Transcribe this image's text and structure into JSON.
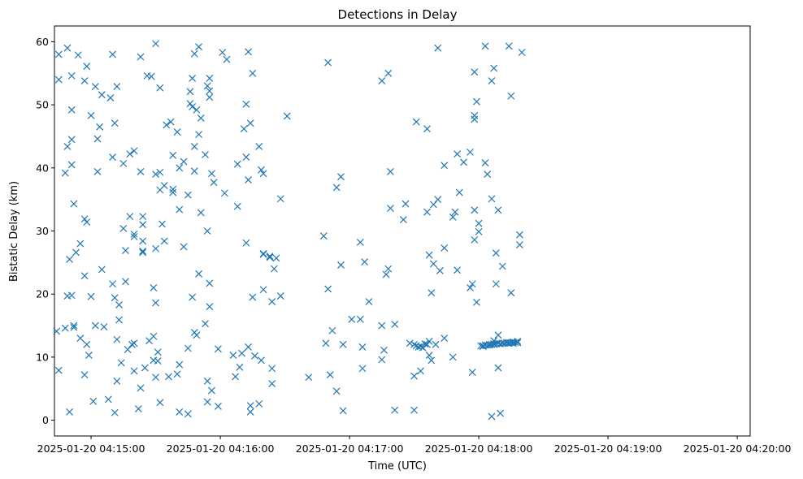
{
  "chart_data": {
    "type": "scatter",
    "title": "Detections in Delay",
    "xlabel": "Time (UTC)",
    "ylabel": "Bistatic Delay (km)",
    "marker": "x",
    "color": "#1f77b4",
    "grid": false,
    "x_tick_labels": [
      "2025-01-20 04:15:00",
      "2025-01-20 04:16:00",
      "2025-01-20 04:17:00",
      "2025-01-20 04:18:00",
      "2025-01-20 04:19:00",
      "2025-01-20 04:20:00"
    ],
    "y_tick_labels": [
      "0",
      "10",
      "20",
      "30",
      "40",
      "50",
      "60"
    ],
    "y_ticks": [
      0,
      10,
      20,
      30,
      40,
      50,
      60
    ],
    "ylim": [
      -2.5,
      62.5
    ],
    "xlim": [
      "2025-01-20 04:14:43",
      "2025-01-20 04:20:06"
    ],
    "points": [
      [
        "04:14:44",
        14.1
      ],
      [
        "04:14:45",
        54.0
      ],
      [
        "04:14:45",
        58.0
      ],
      [
        "04:14:45",
        7.9
      ],
      [
        "04:14:48",
        39.2
      ],
      [
        "04:14:48",
        14.6
      ],
      [
        "04:14:49",
        59.0
      ],
      [
        "04:14:49",
        43.4
      ],
      [
        "04:14:49",
        19.7
      ],
      [
        "04:14:50",
        1.3
      ],
      [
        "04:14:50",
        25.5
      ],
      [
        "04:14:51",
        49.2
      ],
      [
        "04:14:51",
        54.6
      ],
      [
        "04:14:51",
        44.5
      ],
      [
        "04:14:51",
        40.5
      ],
      [
        "04:14:51",
        19.8
      ],
      [
        "04:14:52",
        34.3
      ],
      [
        "04:14:52",
        15.0
      ],
      [
        "04:14:52",
        14.7
      ],
      [
        "04:14:53",
        26.6
      ],
      [
        "04:14:54",
        57.9
      ],
      [
        "04:14:55",
        28.0
      ],
      [
        "04:14:55",
        13.0
      ],
      [
        "04:14:57",
        7.2
      ],
      [
        "04:14:57",
        22.9
      ],
      [
        "04:14:57",
        31.9
      ],
      [
        "04:14:57",
        53.8
      ],
      [
        "04:14:58",
        56.1
      ],
      [
        "04:14:58",
        31.4
      ],
      [
        "04:14:58",
        12.0
      ],
      [
        "04:14:59",
        10.3
      ],
      [
        "04:15:00",
        48.3
      ],
      [
        "04:15:00",
        19.6
      ],
      [
        "04:15:01",
        3.0
      ],
      [
        "04:15:02",
        52.9
      ],
      [
        "04:15:02",
        15.0
      ],
      [
        "04:15:03",
        44.6
      ],
      [
        "04:15:03",
        39.4
      ],
      [
        "04:15:04",
        46.5
      ],
      [
        "04:15:05",
        51.6
      ],
      [
        "04:15:05",
        23.9
      ],
      [
        "04:15:06",
        14.8
      ],
      [
        "04:15:08",
        3.3
      ],
      [
        "04:15:09",
        51.1
      ],
      [
        "04:15:10",
        41.7
      ],
      [
        "04:15:10",
        21.6
      ],
      [
        "04:15:10",
        58.0
      ],
      [
        "04:15:11",
        47.1
      ],
      [
        "04:15:11",
        19.4
      ],
      [
        "04:15:11",
        1.2
      ],
      [
        "04:15:12",
        52.9
      ],
      [
        "04:15:12",
        12.8
      ],
      [
        "04:15:12",
        6.2
      ],
      [
        "04:15:13",
        15.9
      ],
      [
        "04:15:13",
        18.3
      ],
      [
        "04:15:14",
        9.1
      ],
      [
        "04:15:15",
        30.4
      ],
      [
        "04:15:15",
        40.7
      ],
      [
        "04:15:16",
        22.0
      ],
      [
        "04:15:16",
        26.9
      ],
      [
        "04:15:17",
        11.2
      ],
      [
        "04:15:18",
        42.2
      ],
      [
        "04:15:18",
        32.3
      ],
      [
        "04:15:19",
        12.0
      ],
      [
        "04:15:20",
        29.5
      ],
      [
        "04:15:20",
        29.1
      ],
      [
        "04:15:20",
        12.2
      ],
      [
        "04:15:20",
        7.8
      ],
      [
        "04:15:20",
        42.7
      ],
      [
        "04:15:22",
        1.8
      ],
      [
        "04:15:23",
        57.6
      ],
      [
        "04:15:23",
        39.4
      ],
      [
        "04:15:23",
        5.1
      ],
      [
        "04:15:24",
        26.6
      ],
      [
        "04:15:24",
        26.8
      ],
      [
        "04:15:24",
        32.3
      ],
      [
        "04:15:24",
        31.0
      ],
      [
        "04:15:24",
        28.4
      ],
      [
        "04:15:25",
        8.3
      ],
      [
        "04:15:26",
        54.6
      ],
      [
        "04:15:27",
        12.6
      ],
      [
        "04:15:28",
        54.5
      ],
      [
        "04:15:29",
        21.0
      ],
      [
        "04:15:29",
        9.5
      ],
      [
        "04:15:29",
        13.3
      ],
      [
        "04:15:30",
        39.0
      ],
      [
        "04:15:30",
        27.2
      ],
      [
        "04:15:30",
        18.6
      ],
      [
        "04:15:30",
        6.8
      ],
      [
        "04:15:30",
        59.7
      ],
      [
        "04:15:31",
        10.8
      ],
      [
        "04:15:31",
        9.4
      ],
      [
        "04:15:32",
        39.3
      ],
      [
        "04:15:32",
        36.5
      ],
      [
        "04:15:32",
        52.7
      ],
      [
        "04:15:32",
        2.8
      ],
      [
        "04:15:33",
        31.1
      ],
      [
        "04:15:34",
        37.2
      ],
      [
        "04:15:34",
        28.4
      ],
      [
        "04:15:35",
        46.8
      ],
      [
        "04:15:36",
        6.9
      ],
      [
        "04:15:37",
        47.3
      ],
      [
        "04:15:38",
        42.0
      ],
      [
        "04:15:38",
        36.6
      ],
      [
        "04:15:38",
        36.1
      ],
      [
        "04:15:40",
        45.7
      ],
      [
        "04:15:40",
        7.3
      ],
      [
        "04:15:41",
        8.8
      ],
      [
        "04:15:41",
        1.3
      ],
      [
        "04:15:41",
        33.4
      ],
      [
        "04:15:41",
        40.0
      ],
      [
        "04:15:43",
        41.0
      ],
      [
        "04:15:43",
        27.5
      ],
      [
        "04:15:45",
        35.7
      ],
      [
        "04:15:45",
        1.0
      ],
      [
        "04:15:45",
        11.4
      ],
      [
        "04:15:46",
        52.1
      ],
      [
        "04:15:46",
        50.2
      ],
      [
        "04:15:47",
        49.7
      ],
      [
        "04:15:47",
        54.2
      ],
      [
        "04:15:47",
        19.5
      ],
      [
        "04:15:48",
        13.9
      ],
      [
        "04:15:48",
        43.4
      ],
      [
        "04:15:48",
        39.5
      ],
      [
        "04:15:48",
        58.1
      ],
      [
        "04:15:49",
        49.2
      ],
      [
        "04:15:49",
        13.5
      ],
      [
        "04:15:50",
        59.2
      ],
      [
        "04:15:50",
        45.3
      ],
      [
        "04:15:50",
        23.2
      ],
      [
        "04:15:51",
        47.9
      ],
      [
        "04:15:51",
        32.9
      ],
      [
        "04:15:53",
        15.3
      ],
      [
        "04:15:53",
        42.1
      ],
      [
        "04:15:54",
        2.9
      ],
      [
        "04:15:54",
        6.2
      ],
      [
        "04:15:54",
        30.0
      ],
      [
        "04:15:54",
        53.0
      ],
      [
        "04:15:55",
        18.0
      ],
      [
        "04:15:55",
        54.2
      ],
      [
        "04:15:55",
        52.2
      ],
      [
        "04:15:55",
        51.2
      ],
      [
        "04:15:55",
        21.7
      ],
      [
        "04:15:56",
        39.1
      ],
      [
        "04:15:56",
        4.7
      ],
      [
        "04:15:57",
        37.7
      ],
      [
        "04:15:59",
        2.2
      ],
      [
        "04:15:59",
        11.3
      ],
      [
        "04:16:01",
        58.3
      ],
      [
        "04:16:02",
        36.0
      ],
      [
        "04:16:03",
        57.2
      ],
      [
        "04:16:06",
        10.3
      ],
      [
        "04:16:07",
        6.9
      ],
      [
        "04:16:08",
        33.9
      ],
      [
        "04:16:08",
        40.6
      ],
      [
        "04:16:09",
        8.4
      ],
      [
        "04:16:10",
        10.6
      ],
      [
        "04:16:11",
        46.2
      ],
      [
        "04:16:12",
        28.1
      ],
      [
        "04:16:12",
        50.1
      ],
      [
        "04:16:12",
        41.7
      ],
      [
        "04:16:13",
        38.1
      ],
      [
        "04:16:13",
        11.6
      ],
      [
        "04:16:13",
        58.4
      ],
      [
        "04:16:14",
        47.1
      ],
      [
        "04:16:14",
        1.3
      ],
      [
        "04:16:14",
        2.3
      ],
      [
        "04:16:15",
        19.5
      ],
      [
        "04:16:15",
        55.0
      ],
      [
        "04:16:16",
        10.2
      ],
      [
        "04:16:18",
        43.4
      ],
      [
        "04:16:18",
        2.6
      ],
      [
        "04:16:19",
        9.5
      ],
      [
        "04:16:19",
        39.7
      ],
      [
        "04:16:20",
        39.1
      ],
      [
        "04:16:20",
        26.4
      ],
      [
        "04:16:20",
        26.3
      ],
      [
        "04:16:20",
        20.7
      ],
      [
        "04:16:23",
        26.0
      ],
      [
        "04:16:23",
        25.8
      ],
      [
        "04:16:24",
        18.8
      ],
      [
        "04:16:24",
        8.2
      ],
      [
        "04:16:24",
        5.8
      ],
      [
        "04:16:25",
        24.0
      ],
      [
        "04:16:26",
        25.7
      ],
      [
        "04:16:28",
        35.1
      ],
      [
        "04:16:28",
        19.7
      ],
      [
        "04:16:31",
        48.2
      ],
      [
        "04:16:41",
        6.8
      ],
      [
        "04:16:48",
        29.2
      ],
      [
        "04:16:49",
        12.2
      ],
      [
        "04:16:50",
        56.7
      ],
      [
        "04:16:50",
        20.8
      ],
      [
        "04:16:51",
        7.2
      ],
      [
        "04:16:52",
        14.2
      ],
      [
        "04:16:54",
        4.6
      ],
      [
        "04:16:54",
        36.9
      ],
      [
        "04:16:56",
        38.6
      ],
      [
        "04:16:56",
        24.6
      ],
      [
        "04:16:57",
        12.0
      ],
      [
        "04:16:57",
        1.5
      ],
      [
        "04:17:01",
        16.0
      ],
      [
        "04:17:05",
        16.0
      ],
      [
        "04:17:05",
        28.2
      ],
      [
        "04:17:06",
        11.6
      ],
      [
        "04:17:06",
        8.2
      ],
      [
        "04:17:07",
        25.1
      ],
      [
        "04:17:09",
        18.8
      ],
      [
        "04:17:15",
        53.8
      ],
      [
        "04:17:15",
        15.0
      ],
      [
        "04:17:15",
        9.6
      ],
      [
        "04:17:16",
        11.1
      ],
      [
        "04:17:17",
        23.1
      ],
      [
        "04:17:18",
        24.0
      ],
      [
        "04:17:18",
        55.0
      ],
      [
        "04:17:19",
        33.6
      ],
      [
        "04:17:19",
        39.4
      ],
      [
        "04:17:21",
        1.6
      ],
      [
        "04:17:21",
        15.2
      ],
      [
        "04:17:25",
        31.8
      ],
      [
        "04:17:26",
        34.3
      ],
      [
        "04:17:28",
        12.2
      ],
      [
        "04:17:30",
        12.0
      ],
      [
        "04:17:30",
        7.0
      ],
      [
        "04:17:30",
        1.6
      ],
      [
        "04:17:31",
        11.8
      ],
      [
        "04:17:31",
        47.3
      ],
      [
        "04:17:32",
        11.6
      ],
      [
        "04:17:33",
        11.7
      ],
      [
        "04:17:33",
        7.8
      ],
      [
        "04:17:34",
        11.5
      ],
      [
        "04:17:35",
        12.1
      ],
      [
        "04:17:36",
        46.2
      ],
      [
        "04:17:36",
        12.0
      ],
      [
        "04:17:36",
        33.0
      ],
      [
        "04:17:37",
        26.2
      ],
      [
        "04:17:37",
        12.5
      ],
      [
        "04:17:37",
        10.3
      ],
      [
        "04:17:38",
        20.2
      ],
      [
        "04:17:38",
        9.5
      ],
      [
        "04:17:39",
        34.2
      ],
      [
        "04:17:39",
        24.8
      ],
      [
        "04:17:40",
        12.0
      ],
      [
        "04:17:41",
        35.0
      ],
      [
        "04:17:41",
        59.0
      ],
      [
        "04:17:42",
        23.7
      ],
      [
        "04:17:44",
        27.3
      ],
      [
        "04:17:44",
        13.0
      ],
      [
        "04:17:44",
        40.4
      ],
      [
        "04:17:48",
        32.2
      ],
      [
        "04:17:48",
        10.0
      ],
      [
        "04:17:49",
        33.0
      ],
      [
        "04:17:50",
        42.2
      ],
      [
        "04:17:50",
        23.8
      ],
      [
        "04:17:51",
        36.1
      ],
      [
        "04:17:53",
        40.9
      ],
      [
        "04:17:56",
        42.5
      ],
      [
        "04:17:56",
        21.0
      ],
      [
        "04:17:57",
        21.6
      ],
      [
        "04:17:57",
        7.6
      ],
      [
        "04:17:58",
        55.2
      ],
      [
        "04:17:58",
        48.3
      ],
      [
        "04:17:58",
        47.7
      ],
      [
        "04:17:58",
        28.6
      ],
      [
        "04:17:58",
        33.3
      ],
      [
        "04:17:59",
        18.7
      ],
      [
        "04:17:59",
        50.5
      ],
      [
        "04:18:00",
        31.2
      ],
      [
        "04:18:00",
        29.9
      ],
      [
        "04:18:01",
        11.8
      ],
      [
        "04:18:02",
        11.8
      ],
      [
        "04:18:02",
        11.7
      ],
      [
        "04:18:03",
        59.3
      ],
      [
        "04:18:03",
        40.8
      ],
      [
        "04:18:03",
        11.9
      ],
      [
        "04:18:04",
        11.9
      ],
      [
        "04:18:04",
        39.0
      ],
      [
        "04:18:05",
        11.9
      ],
      [
        "04:18:05",
        12.0
      ],
      [
        "04:18:06",
        35.1
      ],
      [
        "04:18:06",
        53.8
      ],
      [
        "04:18:06",
        0.6
      ],
      [
        "04:18:06",
        12.0
      ],
      [
        "04:18:07",
        12.0
      ],
      [
        "04:18:07",
        12.6
      ],
      [
        "04:18:07",
        55.8
      ],
      [
        "04:18:07",
        12.1
      ],
      [
        "04:18:08",
        26.5
      ],
      [
        "04:18:08",
        21.6
      ],
      [
        "04:18:08",
        12.1
      ],
      [
        "04:18:09",
        8.3
      ],
      [
        "04:18:09",
        33.3
      ],
      [
        "04:18:09",
        12.2
      ],
      [
        "04:18:09",
        13.5
      ],
      [
        "04:18:10",
        1.1
      ],
      [
        "04:18:10",
        12.1
      ],
      [
        "04:18:11",
        24.4
      ],
      [
        "04:18:11",
        12.2
      ],
      [
        "04:18:11",
        12.2
      ],
      [
        "04:18:12",
        12.2
      ],
      [
        "04:18:13",
        12.3
      ],
      [
        "04:18:13",
        12.3
      ],
      [
        "04:18:14",
        12.2
      ],
      [
        "04:18:14",
        59.3
      ],
      [
        "04:18:14",
        12.3
      ],
      [
        "04:18:15",
        51.4
      ],
      [
        "04:18:15",
        12.3
      ],
      [
        "04:18:15",
        20.2
      ],
      [
        "04:18:16",
        12.4
      ],
      [
        "04:18:16",
        12.2
      ],
      [
        "04:18:17",
        12.3
      ],
      [
        "04:18:18",
        12.3
      ],
      [
        "04:18:18",
        12.5
      ],
      [
        "04:18:19",
        29.4
      ],
      [
        "04:18:19",
        27.8
      ],
      [
        "04:18:20",
        58.3
      ]
    ]
  }
}
